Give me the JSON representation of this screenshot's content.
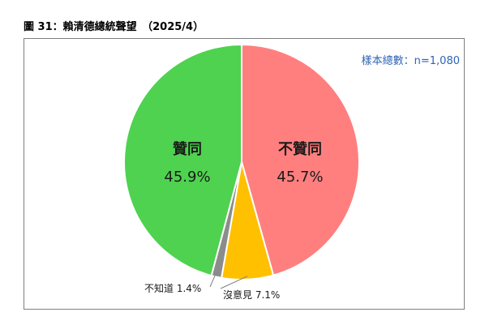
{
  "title": "圖 31：賴清德總統聲望　（2025/4）",
  "sample_note": "樣本總數：n=1,080",
  "chart_data": {
    "type": "pie",
    "title": "圖 31：賴清德總統聲望　（2025/4）",
    "start_angle": "12 o'clock",
    "direction": "clockwise",
    "slices": [
      {
        "label": "不贊同",
        "value": 45.7,
        "value_text": "45.7%",
        "color": "#ff7f7f",
        "label_placement": "inside"
      },
      {
        "label": "沒意見",
        "value": 7.1,
        "value_text": "7.1%",
        "color": "#ffc000",
        "label_placement": "outside"
      },
      {
        "label": "不知道",
        "value": 1.4,
        "value_text": "1.4%",
        "color": "#8c8c8c",
        "label_placement": "outside"
      },
      {
        "label": "贊同",
        "value": 45.9,
        "value_text": "45.9%",
        "color": "#4fd24f",
        "label_placement": "inside"
      }
    ]
  }
}
